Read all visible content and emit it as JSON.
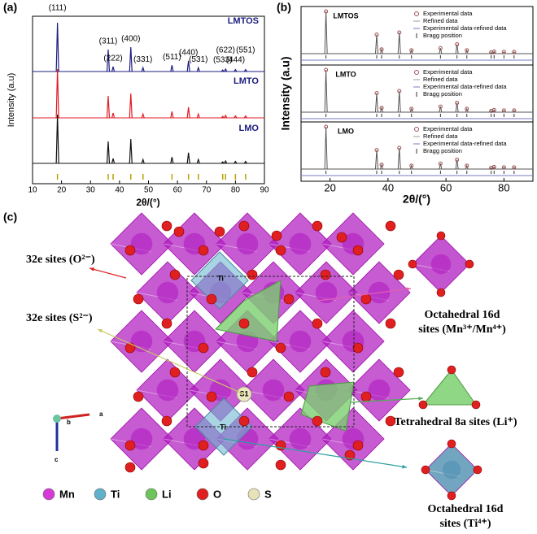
{
  "panel_a": {
    "label": "(a)",
    "xlabel": "2θ/(°)",
    "ylabel": "Intensity (a.u)",
    "xlim": [
      10,
      90
    ],
    "xticks": [
      10,
      20,
      30,
      40,
      50,
      60,
      70,
      80,
      90
    ],
    "samples": [
      {
        "name": "LMTOS",
        "color": "#1c1c80"
      },
      {
        "name": "LMTO",
        "color": "#e01b24"
      },
      {
        "name": "LMO",
        "color": "#111111"
      }
    ],
    "peaks": [
      {
        "hkl": "(111)",
        "x": 18.6,
        "height": 1.0
      },
      {
        "hkl": "(311)",
        "x": 36.1,
        "height": 0.45
      },
      {
        "hkl": "(222)",
        "x": 37.8,
        "height": 0.1
      },
      {
        "hkl": "(400)",
        "x": 43.9,
        "height": 0.5
      },
      {
        "hkl": "(331)",
        "x": 48.1,
        "height": 0.08
      },
      {
        "hkl": "(511)",
        "x": 58.1,
        "height": 0.13
      },
      {
        "hkl": "(440)",
        "x": 63.8,
        "height": 0.22
      },
      {
        "hkl": "(531)",
        "x": 67.2,
        "height": 0.08
      },
      {
        "hkl": "(533)",
        "x": 75.6,
        "height": 0.03
      },
      {
        "hkl": "(622)",
        "x": 76.6,
        "height": 0.05
      },
      {
        "hkl": "(444)",
        "x": 80.0,
        "height": 0.04
      },
      {
        "hkl": "(551)",
        "x": 83.5,
        "height": 0.04
      }
    ]
  },
  "panel_b": {
    "label": "(b)",
    "xlabel": "2θ/(°)",
    "ylabel": "Intensity (a.u)",
    "xlim": [
      10,
      90
    ],
    "xticks": [
      20,
      40,
      60,
      80
    ],
    "samples": [
      "LMTOS",
      "LMTO",
      "LMO"
    ],
    "legend": [
      "Experimental data",
      "Refined data",
      "Experimental data-refined data",
      "Bragg position"
    ]
  },
  "panel_c": {
    "label": "(c)",
    "o_sites": "32e sites (O²⁻)",
    "s_sites": "32e sites (S²⁻)",
    "mn_sites": [
      "Octahedral 16d",
      "sites (Mn³⁺/Mn⁴⁺)"
    ],
    "li_sites": "Tetrahedral 8a sites (Li⁺)",
    "ti_sites": [
      "Octahedral 16d",
      "sites (Ti⁴⁺)"
    ],
    "atom_labels": [
      "Ti",
      "S1",
      "Ti"
    ],
    "axes": [
      "a",
      "b",
      "c"
    ],
    "legend": [
      {
        "name": "Mn",
        "color": "#d63ad6"
      },
      {
        "name": "Ti",
        "color": "#5fb0c8"
      },
      {
        "name": "Li",
        "color": "#6cc45a"
      },
      {
        "name": "O",
        "color": "#e02020"
      },
      {
        "name": "S",
        "color": "#e8e2b8"
      }
    ]
  }
}
